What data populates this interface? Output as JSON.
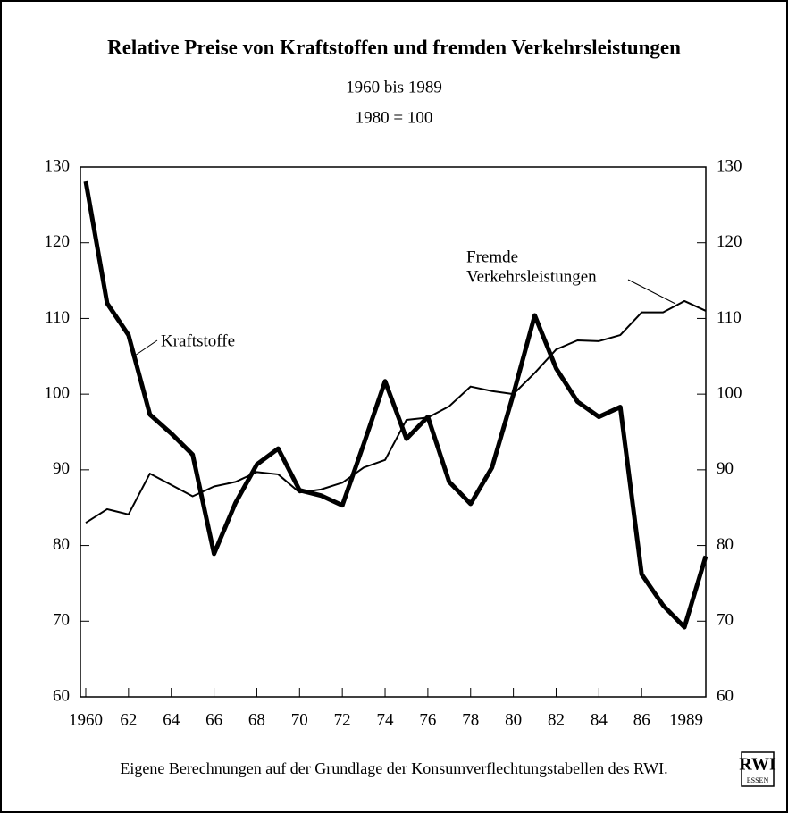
{
  "chart_data": {
    "type": "line",
    "title": "Relative Preise von Kraftstoffen und fremden Verkehrsleistungen",
    "subtitle": [
      "1960 bis 1989",
      "1980 = 100"
    ],
    "x": [
      1960,
      1961,
      1962,
      1963,
      1964,
      1965,
      1966,
      1967,
      1968,
      1969,
      1970,
      1971,
      1972,
      1973,
      1974,
      1975,
      1976,
      1977,
      1978,
      1979,
      1980,
      1981,
      1982,
      1983,
      1984,
      1985,
      1986,
      1987,
      1988,
      1989
    ],
    "series": [
      {
        "name": "Kraftstoffe",
        "color": "#000000",
        "width": 5,
        "values": [
          128.1,
          112,
          107.8,
          97.3,
          94.8,
          92,
          78.9,
          85.6,
          90.7,
          92.8,
          87.3,
          86.6,
          85.3,
          93.4,
          101.7,
          94.1,
          97,
          88.4,
          85.5,
          90.3,
          100,
          110.4,
          103.4,
          99,
          97,
          98.3,
          76.2,
          72.1,
          69.2,
          78.6
        ]
      },
      {
        "name": "Fremde Verkehrsleistungen",
        "color": "#000000",
        "width": 2,
        "values": [
          83,
          84.8,
          84.1,
          89.5,
          88,
          86.5,
          87.8,
          88.4,
          89.7,
          89.4,
          87,
          87.4,
          88.3,
          90.3,
          91.3,
          96.6,
          96.9,
          98.4,
          101,
          100.4,
          100,
          102.8,
          105.9,
          107.1,
          107,
          107.8,
          110.8,
          110.8,
          112.3,
          111
        ]
      }
    ],
    "annotations": [
      [
        "Kraftstoffe"
      ],
      [
        "Fremde",
        "Verkehrsleistungen"
      ]
    ],
    "xlim": [
      1959.75,
      1989
    ],
    "xticks": [
      1960,
      {
        "value": 1962,
        "label": "62"
      },
      {
        "value": 1964,
        "label": "64"
      },
      {
        "value": 1966,
        "label": "66"
      },
      {
        "value": 1968,
        "label": "68"
      },
      {
        "value": 1970,
        "label": "70"
      },
      {
        "value": 1972,
        "label": "72"
      },
      {
        "value": 1974,
        "label": "74"
      },
      {
        "value": 1976,
        "label": "76"
      },
      {
        "value": 1978,
        "label": "78"
      },
      {
        "value": 1980,
        "label": "80"
      },
      {
        "value": 1982,
        "label": "82"
      },
      {
        "value": 1984,
        "label": "84"
      },
      {
        "value": 1986,
        "label": "86"
      },
      1989
    ],
    "ylim": [
      60,
      130
    ],
    "yticks": [
      60,
      70,
      80,
      90,
      100,
      110,
      120,
      130
    ],
    "y2lim": [
      60,
      130
    ],
    "y2ticks": [
      60,
      70,
      80,
      90,
      100,
      110,
      120,
      130
    ],
    "source": "Eigene Berechnungen auf der Grundlage der Konsumverflechtungstabellen des RWI.",
    "logo": [
      "RWI",
      "ESSEN"
    ]
  }
}
